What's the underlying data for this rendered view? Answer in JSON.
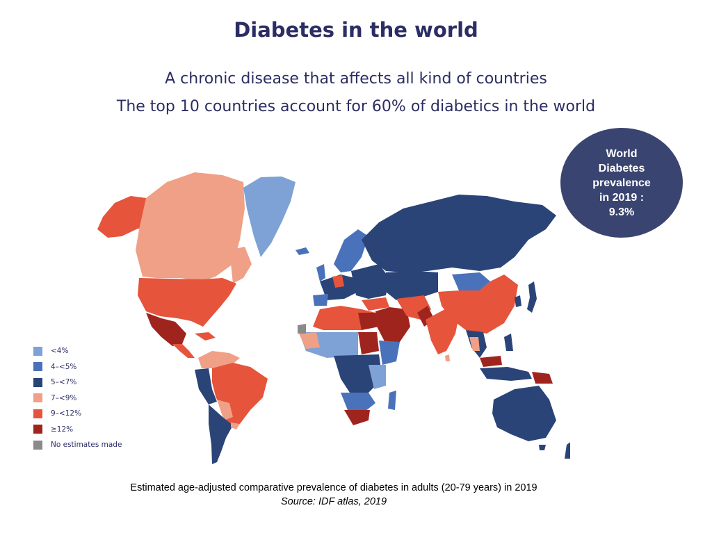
{
  "slide": {
    "title": "Diabetes in the world",
    "subtitle_line1": "A chronic disease that affects all kind of countries",
    "subtitle_line2": "The top 10 countries account for 60% of diabetics in the world"
  },
  "badge": {
    "line1": "World",
    "line2": "Diabetes",
    "line3": "prevalence",
    "line4": "in 2019 :",
    "line5": "9.3%"
  },
  "legend": {
    "items": [
      {
        "label": "<4%",
        "color": "#7ea1d6"
      },
      {
        "label": "4–<5%",
        "color": "#4a72bb"
      },
      {
        "label": "5–<7%",
        "color": "#2a4478"
      },
      {
        "label": "7–<9%",
        "color": "#f0a086"
      },
      {
        "label": "9–<12%",
        "color": "#e5543b"
      },
      {
        "label": "≥12%",
        "color": "#a0241e"
      },
      {
        "label": "No estimates made",
        "color": "#8a8a8a"
      }
    ]
  },
  "caption": {
    "main": "Estimated age-adjusted comparative prevalence of diabetes in  adults (20-79 years) in 2019",
    "source": "Source: IDF atlas, 2019"
  }
}
